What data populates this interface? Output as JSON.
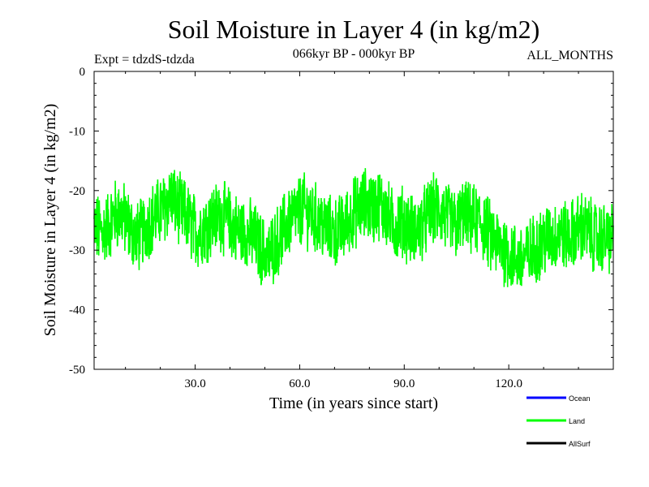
{
  "chart_data": {
    "type": "line",
    "title": "Soil Moisture in Layer 4 (in kg/m2)",
    "subtitle": "066kyr BP - 000kyr BP",
    "experiment": "Expt = tdzdS-tdzda",
    "months": "ALL_MONTHS",
    "xlabel": "Time (in years since start)",
    "ylabel": "Soil Moisture in Layer 4 (in kg/m2)",
    "xlim": [
      1,
      150
    ],
    "ylim": [
      -50,
      0
    ],
    "x_ticks": [
      30,
      60,
      90,
      120
    ],
    "x_tick_labels": [
      "30.0",
      "60.0",
      "90.0",
      "120.0"
    ],
    "y_ticks": [
      0,
      -10,
      -20,
      -30,
      -40,
      -50
    ],
    "y_tick_labels": [
      "0",
      "-10",
      "-20",
      "-30",
      "-40",
      "-50"
    ],
    "legend": [
      {
        "name": "Ocean",
        "color": "#0000ff"
      },
      {
        "name": "Land",
        "color": "#00ff00"
      },
      {
        "name": "AllSurf",
        "color": "#000000"
      }
    ],
    "series": [
      {
        "name": "Land",
        "color": "#00ff00",
        "samples_per_year": 12,
        "segments": [
          [
            1,
            -26
          ],
          [
            3,
            -27
          ],
          [
            5,
            -26
          ],
          [
            7,
            -24
          ],
          [
            9,
            -24
          ],
          [
            11,
            -26
          ],
          [
            13,
            -28
          ],
          [
            15,
            -27
          ],
          [
            17,
            -25
          ],
          [
            19,
            -24
          ],
          [
            21,
            -23
          ],
          [
            23,
            -21
          ],
          [
            25,
            -23
          ],
          [
            27,
            -24
          ],
          [
            29,
            -26
          ],
          [
            31,
            -27
          ],
          [
            33,
            -26
          ],
          [
            35,
            -25
          ],
          [
            37,
            -24
          ],
          [
            39,
            -25
          ],
          [
            41,
            -26
          ],
          [
            43,
            -27
          ],
          [
            45,
            -27
          ],
          [
            47,
            -28
          ],
          [
            49,
            -30
          ],
          [
            51,
            -31
          ],
          [
            53,
            -29
          ],
          [
            55,
            -27
          ],
          [
            57,
            -25
          ],
          [
            59,
            -24
          ],
          [
            61,
            -23
          ],
          [
            63,
            -24
          ],
          [
            65,
            -25
          ],
          [
            67,
            -26
          ],
          [
            69,
            -27
          ],
          [
            71,
            -27
          ],
          [
            73,
            -26
          ],
          [
            75,
            -24
          ],
          [
            77,
            -23
          ],
          [
            79,
            -22
          ],
          [
            81,
            -23
          ],
          [
            83,
            -22
          ],
          [
            85,
            -24
          ],
          [
            87,
            -26
          ],
          [
            89,
            -25
          ],
          [
            91,
            -26
          ],
          [
            93,
            -27
          ],
          [
            95,
            -26
          ],
          [
            97,
            -24
          ],
          [
            99,
            -23
          ],
          [
            101,
            -24
          ],
          [
            103,
            -25
          ],
          [
            105,
            -26
          ],
          [
            107,
            -24
          ],
          [
            109,
            -25
          ],
          [
            111,
            -25
          ],
          [
            113,
            -26
          ],
          [
            115,
            -28
          ],
          [
            117,
            -29
          ],
          [
            119,
            -30
          ],
          [
            121,
            -31
          ],
          [
            123,
            -32
          ],
          [
            125,
            -31
          ],
          [
            127,
            -30
          ],
          [
            129,
            -29
          ],
          [
            131,
            -28
          ],
          [
            133,
            -28
          ],
          [
            135,
            -27
          ],
          [
            137,
            -28
          ],
          [
            139,
            -27
          ],
          [
            141,
            -26
          ],
          [
            143,
            -27
          ],
          [
            145,
            -28
          ],
          [
            147,
            -28
          ],
          [
            150,
            -28
          ]
        ],
        "noise_amplitude": 5.5,
        "range": [
          -40.5,
          -10
        ]
      }
    ]
  }
}
